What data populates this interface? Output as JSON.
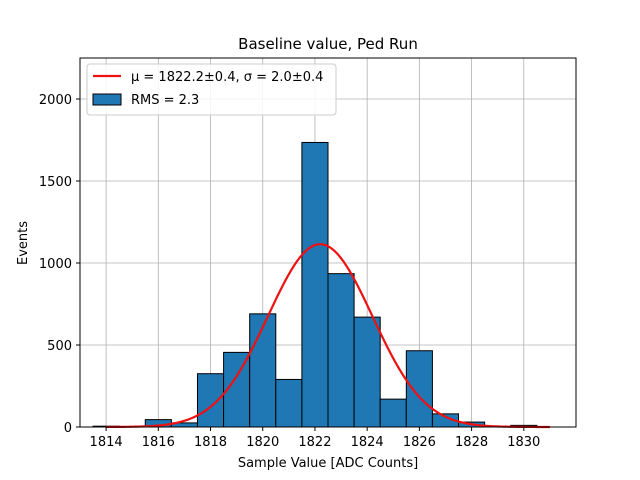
{
  "chart_data": {
    "type": "bar",
    "title": "Baseline value, Ped Run",
    "xlabel": "Sample Value [ADC Counts]",
    "ylabel": "Events",
    "xlim": [
      1813,
      1832
    ],
    "ylim": [
      0,
      2250
    ],
    "xticks": [
      1814,
      1816,
      1818,
      1820,
      1822,
      1824,
      1826,
      1828,
      1830
    ],
    "yticks": [
      0,
      500,
      1000,
      1500,
      2000
    ],
    "grid": true,
    "legend_position": "top-left",
    "bin_width": 1,
    "bins": [
      {
        "x": 1814,
        "value": 5
      },
      {
        "x": 1816,
        "value": 45
      },
      {
        "x": 1817,
        "value": 25
      },
      {
        "x": 1818,
        "value": 325
      },
      {
        "x": 1819,
        "value": 455
      },
      {
        "x": 1820,
        "value": 690
      },
      {
        "x": 1821,
        "value": 290
      },
      {
        "x": 1822,
        "value": 1735
      },
      {
        "x": 1823,
        "value": 935
      },
      {
        "x": 1824,
        "value": 670
      },
      {
        "x": 1825,
        "value": 170
      },
      {
        "x": 1826,
        "value": 465
      },
      {
        "x": 1827,
        "value": 80
      },
      {
        "x": 1828,
        "value": 30
      },
      {
        "x": 1830,
        "value": 10
      }
    ],
    "histogram_label": "RMS = 2.3",
    "histogram_color": "#1f77b4",
    "fit": {
      "type": "gaussian",
      "label": "μ = 1822.2±0.4, σ = 2.0±0.4",
      "mu": 1822.2,
      "sigma": 2.0,
      "amplitude": 1115,
      "x_range": [
        1814,
        1831
      ],
      "color": "#ee1111"
    }
  }
}
